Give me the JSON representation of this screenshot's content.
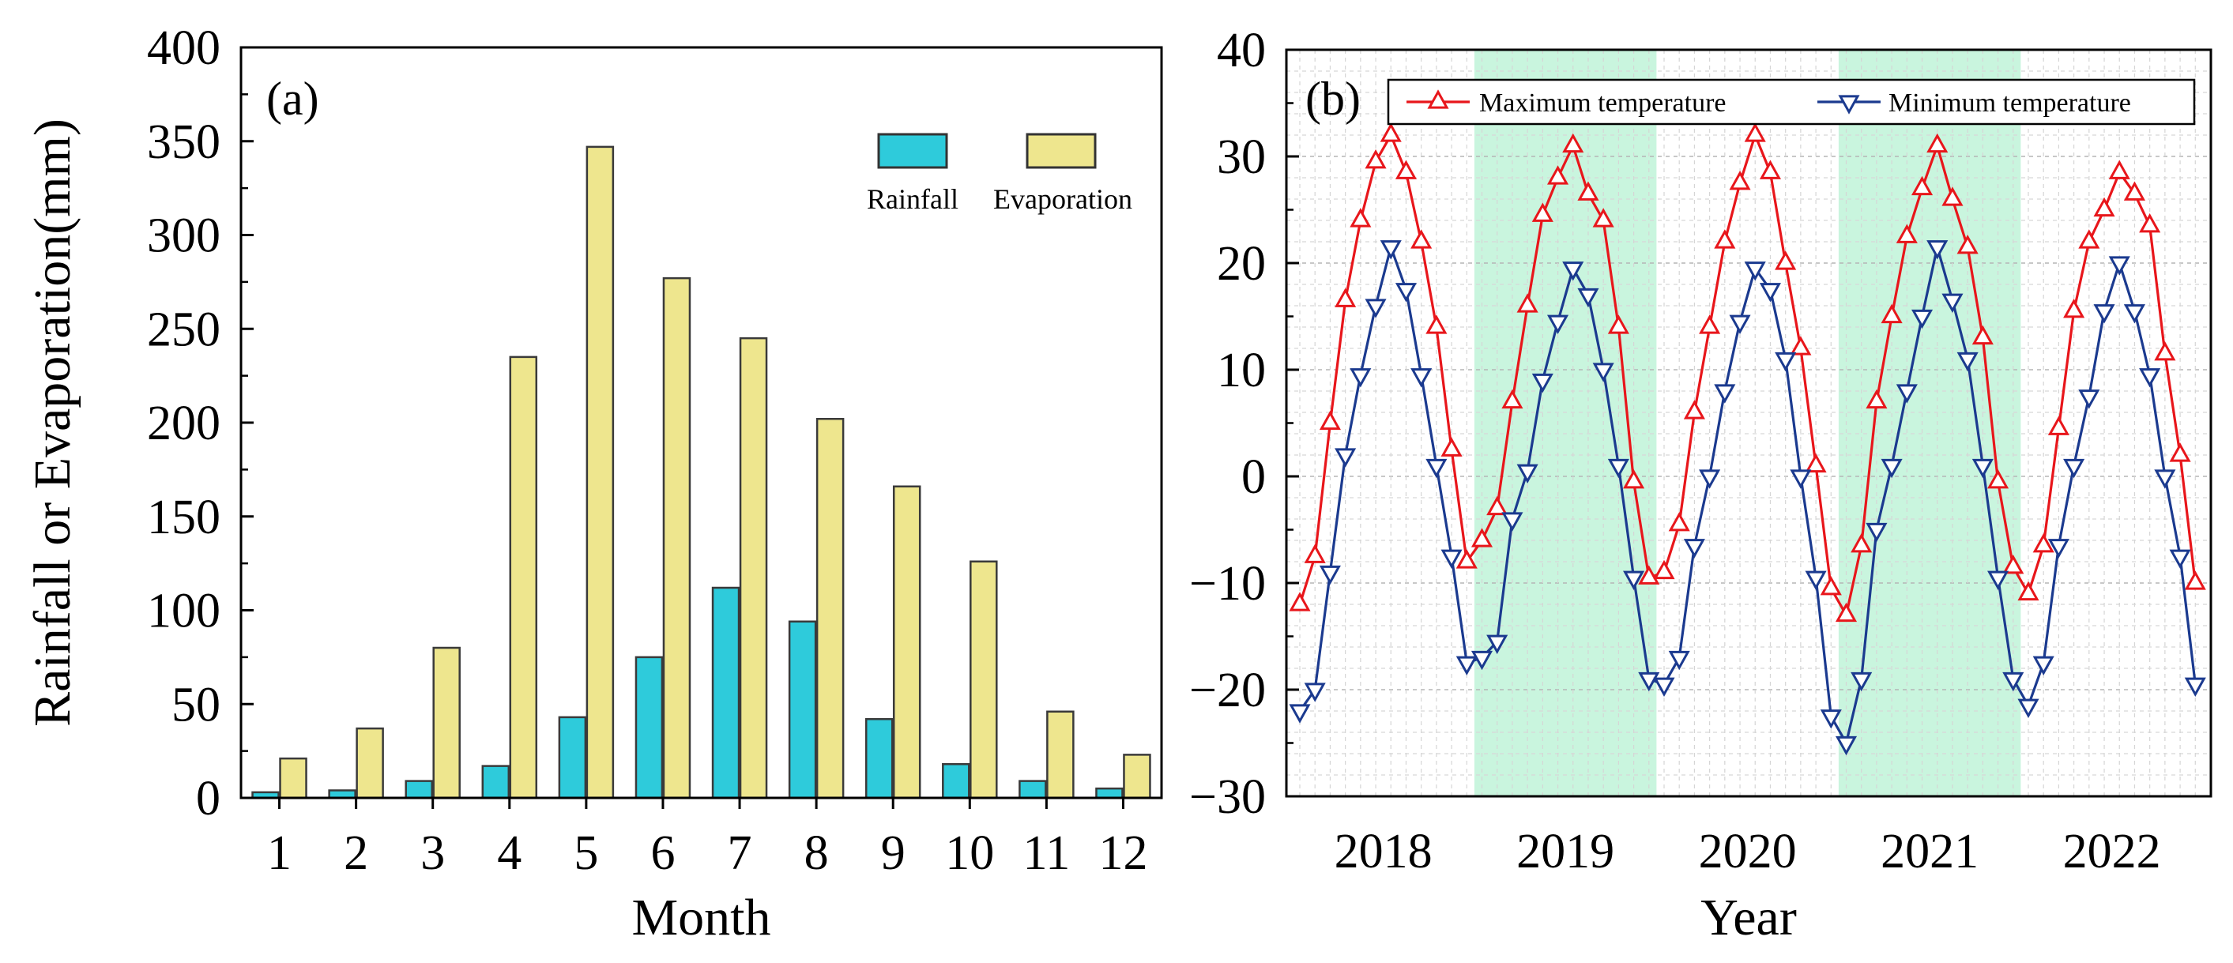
{
  "chart_data": [
    {
      "type": "bar",
      "panel_label": "(a)",
      "xlabel": "Month",
      "ylabel": "Rainfall or Evaporation(mm)",
      "ylim": [
        0,
        400
      ],
      "yticks": [
        0,
        50,
        100,
        150,
        200,
        250,
        300,
        350,
        400
      ],
      "categories": [
        "1",
        "2",
        "3",
        "4",
        "5",
        "6",
        "7",
        "8",
        "9",
        "10",
        "11",
        "12"
      ],
      "legend_position": "top-right",
      "series": [
        {
          "name": "Rainfall",
          "color": "#2ECBDB",
          "values": [
            3,
            4,
            9,
            17,
            43,
            75,
            112,
            94,
            42,
            18,
            9,
            5
          ]
        },
        {
          "name": "Evaporation",
          "color": "#EEE68E",
          "values": [
            21,
            37,
            80,
            235,
            347,
            277,
            245,
            202,
            166,
            126,
            46,
            23
          ]
        }
      ]
    },
    {
      "type": "line",
      "panel_label": "(b)",
      "xlabel": "Year",
      "ylim": [
        -30,
        40
      ],
      "yticks": [
        -30,
        -20,
        -10,
        0,
        10,
        20,
        30,
        40
      ],
      "x_tick_labels": [
        "2018",
        "2019",
        "2020",
        "2021",
        "2022"
      ],
      "shaded_years": [
        "2019",
        "2021"
      ],
      "shade_color": "#C9F5DE",
      "grid": true,
      "legend_position": "top",
      "series": [
        {
          "name": "Maximum temperature",
          "color": "#E8161B",
          "marker": "triangle-up",
          "values": [
            -12,
            -7.5,
            5,
            16.5,
            24,
            29.5,
            32,
            28.5,
            22,
            14,
            2.5,
            -8,
            -6,
            -3,
            7,
            16,
            24.5,
            28,
            31,
            26.5,
            24,
            14,
            -0.5,
            -9.5,
            -9,
            -4.5,
            6,
            14,
            22,
            27.5,
            32,
            28.5,
            20,
            12,
            1,
            -10.5,
            -13,
            -6.5,
            7,
            15,
            22.5,
            27,
            31,
            26,
            21.5,
            13,
            -0.5,
            -8.5,
            -11,
            -6.5,
            4.5,
            15.5,
            22,
            25,
            28.5,
            26.5,
            23.5,
            11.5,
            2,
            -10
          ]
        },
        {
          "name": "Minimum temperature",
          "color": "#1B3A8F",
          "marker": "triangle-down",
          "values": [
            -22,
            -20,
            -9,
            2,
            9.5,
            16,
            21.5,
            17.5,
            9.5,
            1,
            -7.5,
            -17.5,
            -17,
            -15.5,
            -4,
            0.5,
            9,
            14.5,
            19.5,
            17,
            10,
            1,
            -9.5,
            -19,
            -19.5,
            -17,
            -6.5,
            0,
            8,
            14.5,
            19.5,
            17.5,
            11,
            0,
            -9.5,
            -22.5,
            -25,
            -19,
            -5,
            1,
            8,
            15,
            21.5,
            16.5,
            11,
            1,
            -9.5,
            -19,
            -21.5,
            -17.5,
            -6.5,
            1,
            7.5,
            15.5,
            20,
            15.5,
            9.5,
            0,
            -7.5,
            -19.5
          ]
        }
      ]
    }
  ]
}
